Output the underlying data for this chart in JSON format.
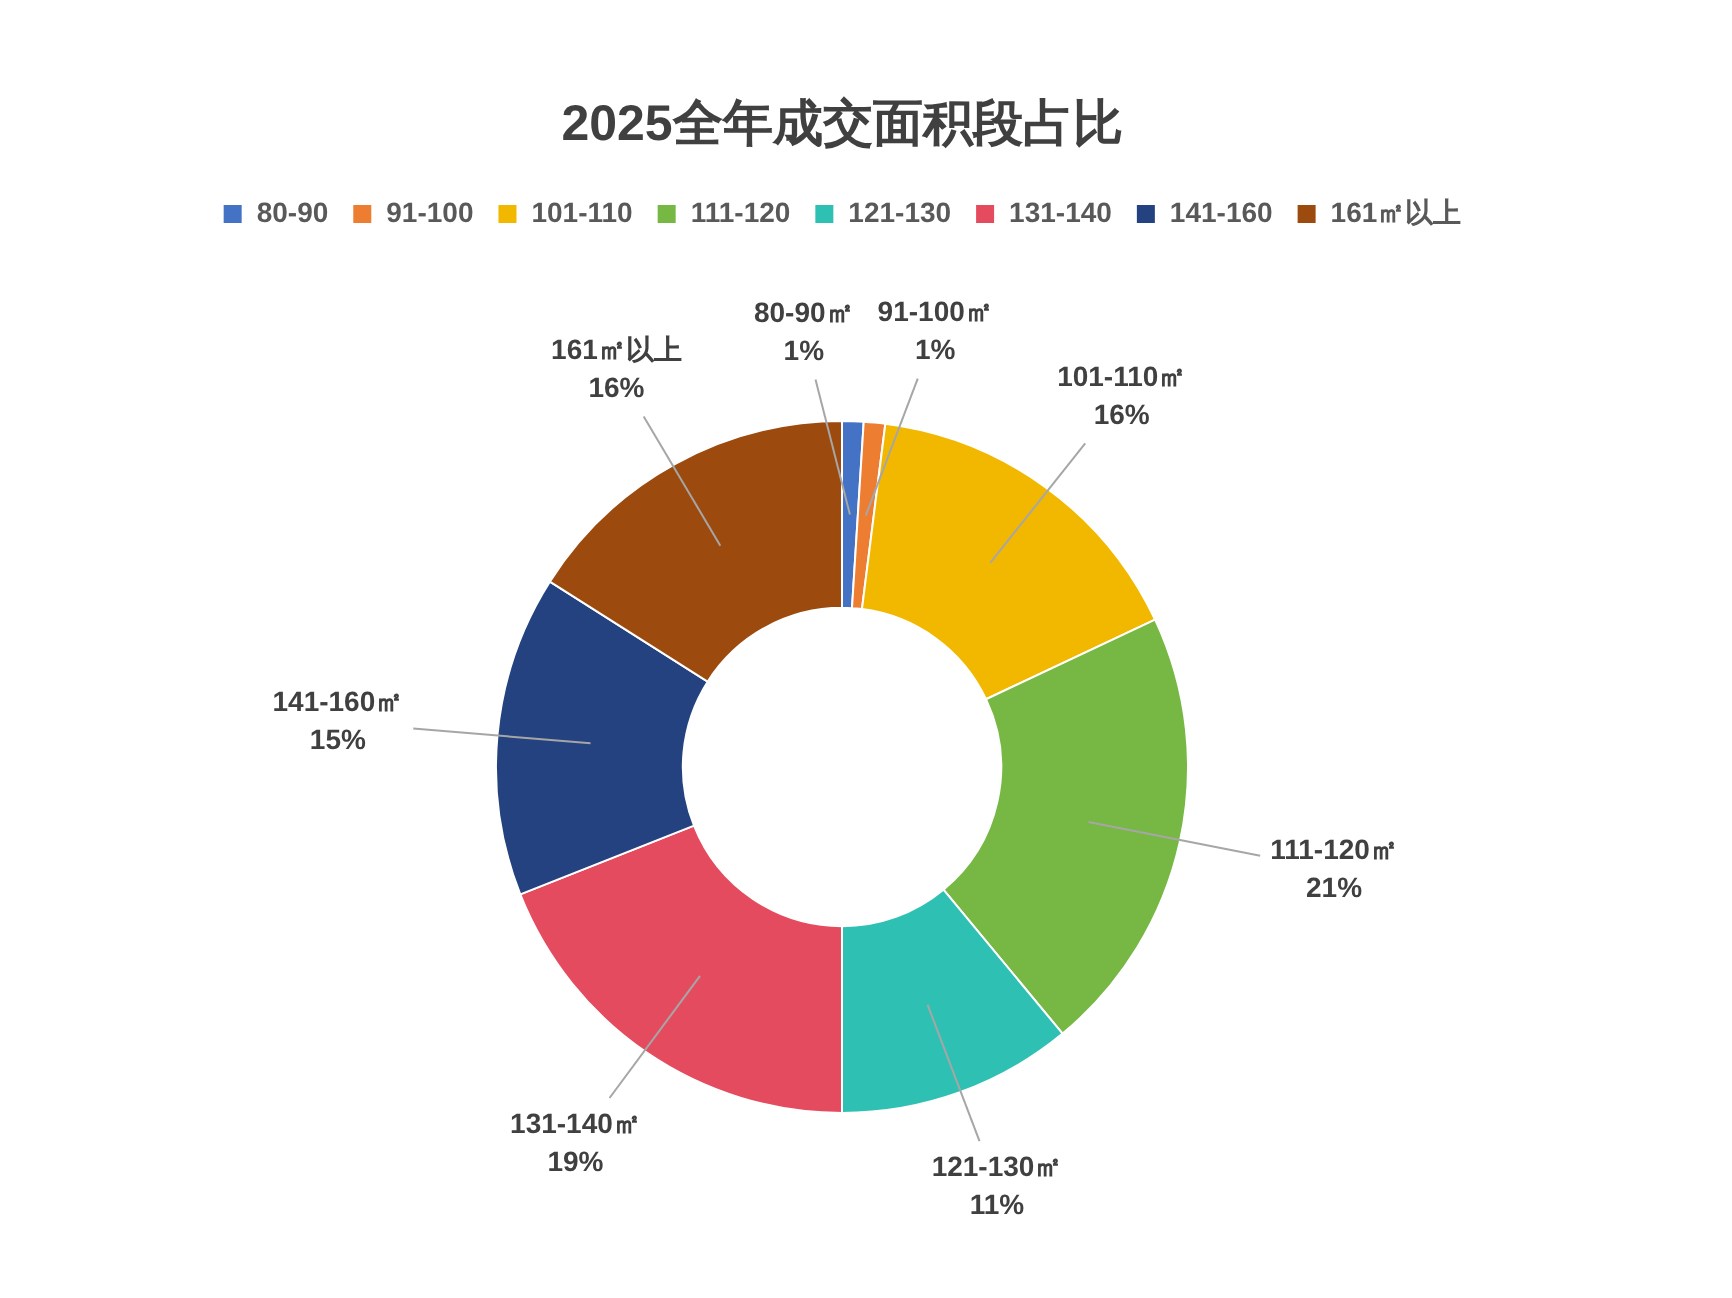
{
  "chart_data": {
    "type": "donut",
    "title": "2025全年成交面积段占比",
    "categories": [
      "80-90",
      "91-100",
      "101-110",
      "111-120",
      "121-130",
      "131-140",
      "141-160",
      "161㎡以上"
    ],
    "values": [
      1,
      1,
      16,
      21,
      11,
      19,
      15,
      16
    ],
    "colors": [
      "#4472c4",
      "#ed7d31",
      "#f2b800",
      "#76b843",
      "#2ec0b3",
      "#e54b5e",
      "#24427f",
      "#9c4a0d"
    ],
    "value_labels": [
      "80-90㎡\n1%",
      "91-100㎡\n1%",
      "101-110㎡\n16%",
      "111-120㎡\n21%",
      "121-130㎡\n11%",
      "131-140㎡\n19%",
      "141-160㎡\n15%",
      "161㎡以上\n16%"
    ],
    "legend": "top"
  }
}
